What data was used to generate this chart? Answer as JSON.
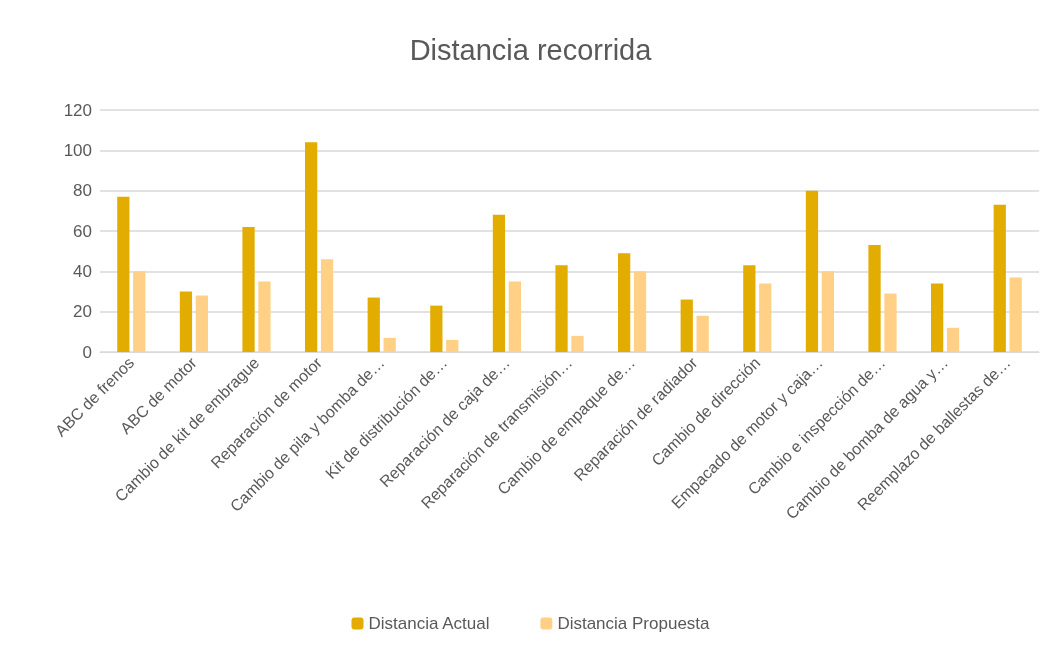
{
  "chart_data": {
    "type": "bar",
    "title": "Distancia recorrida",
    "categories": [
      "ABC de frenos",
      "ABC de motor",
      "Cambio de kit de embrague",
      "Reparación de motor",
      "Cambio de pila y bomba de…",
      "Kit de distribución de…",
      "Reparación de caja de…",
      "Reparación de transmisión…",
      "Cambio de empaque de…",
      "Reparación de radiador",
      "Cambio de dirección",
      "Empacado de motor y caja…",
      "Cambio e inspección de…",
      "Cambio de bomba de agua y…",
      "Reemplazo de ballestas de…"
    ],
    "series": [
      {
        "name": "Distancia Actual",
        "color": "#e2ac00",
        "values": [
          77,
          30,
          62,
          104,
          27,
          23,
          68,
          43,
          49,
          26,
          43,
          80,
          53,
          34,
          73
        ]
      },
      {
        "name": "Distancia Propuesta",
        "color": "#ffd085",
        "values": [
          40,
          28,
          35,
          46,
          7,
          6,
          35,
          8,
          40,
          18,
          34,
          40,
          29,
          12,
          37
        ]
      }
    ],
    "ylim": [
      0,
      120
    ],
    "yticks": [
      0,
      20,
      40,
      60,
      80,
      100,
      120
    ],
    "grid": "y",
    "legend": "bottom"
  }
}
